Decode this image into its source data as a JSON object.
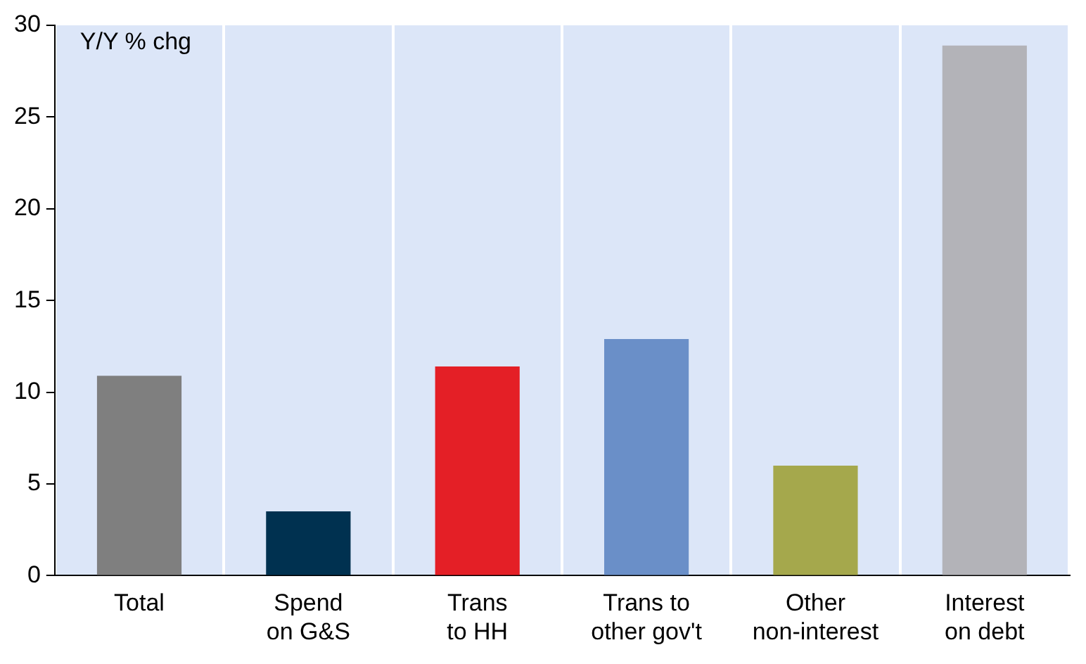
{
  "chart_data": {
    "type": "bar",
    "categories": [
      "Total",
      "Spend on G&S",
      "Trans to HH",
      "Trans to other gov't",
      "Other non-interest",
      "Interest on debt"
    ],
    "values": [
      10.9,
      3.5,
      11.4,
      12.9,
      6.0,
      28.9
    ],
    "colors": [
      "#7f7f7f",
      "#003150",
      "#e41f26",
      "#6a8fc8",
      "#a5a84c",
      "#b3b3b8"
    ],
    "ylim": [
      0,
      30
    ],
    "yticks": [
      0,
      5,
      10,
      15,
      20,
      25,
      30
    ],
    "grid": "x",
    "legend": false,
    "annotations": [
      "Y/Y % chg"
    ]
  }
}
